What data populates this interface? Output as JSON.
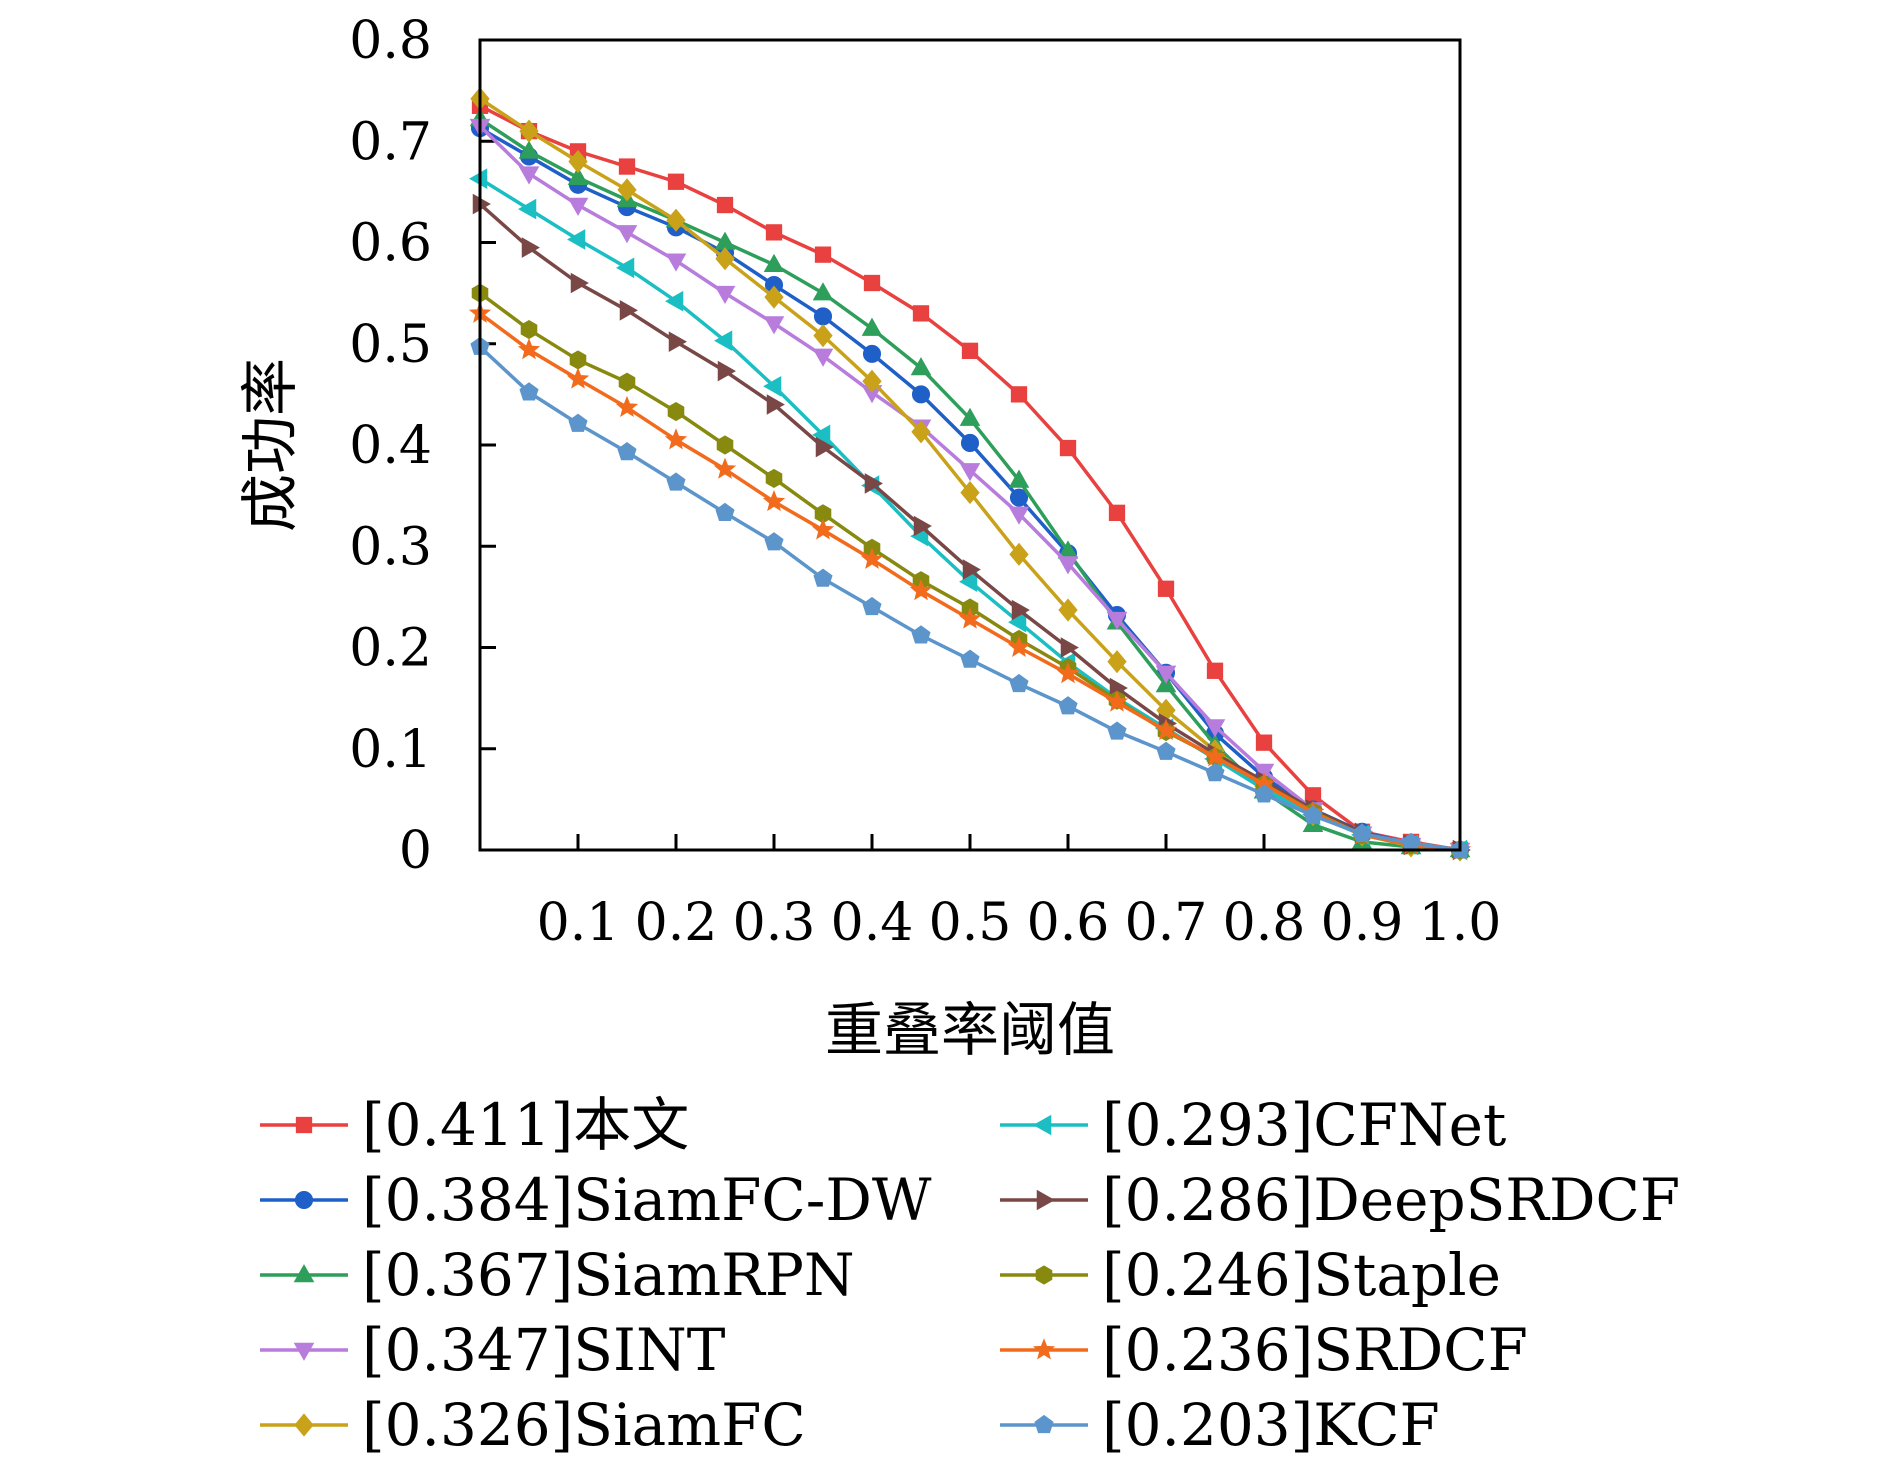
{
  "chart_data": {
    "type": "line",
    "title": "",
    "xlabel": "重叠率阈值",
    "ylabel": "成功率",
    "xlim": [
      0,
      1.0
    ],
    "ylim": [
      0,
      0.8
    ],
    "xticks": [
      "0.1",
      "0.2",
      "0.3",
      "0.4",
      "0.5",
      "0.6",
      "0.7",
      "0.8",
      "0.9",
      "1.0"
    ],
    "yticks": [
      "0",
      "0.1",
      "0.2",
      "0.3",
      "0.4",
      "0.5",
      "0.6",
      "0.7",
      "0.8"
    ],
    "grid": false,
    "legend_position": "bottom",
    "x": [
      0,
      0.05,
      0.1,
      0.15,
      0.2,
      0.25,
      0.3,
      0.35,
      0.4,
      0.45,
      0.5,
      0.55,
      0.6,
      0.65,
      0.7,
      0.75,
      0.8,
      0.85,
      0.9,
      0.95,
      1.0
    ],
    "series": [
      {
        "name": "[0.411]本文",
        "color": "#e8413f",
        "marker": "square",
        "values": [
          0.735,
          0.71,
          0.69,
          0.675,
          0.66,
          0.637,
          0.61,
          0.588,
          0.56,
          0.53,
          0.493,
          0.45,
          0.397,
          0.333,
          0.258,
          0.177,
          0.106,
          0.054,
          0.018,
          0.008,
          0.0
        ]
      },
      {
        "name": "[0.384]SiamFC-DW",
        "color": "#1f5fc8",
        "marker": "circle",
        "values": [
          0.713,
          0.685,
          0.657,
          0.635,
          0.615,
          0.59,
          0.558,
          0.527,
          0.49,
          0.45,
          0.402,
          0.348,
          0.293,
          0.232,
          0.175,
          0.115,
          0.072,
          0.04,
          0.018,
          0.006,
          0.0
        ]
      },
      {
        "name": "[0.367]SiamRPN",
        "color": "#2e9e5b",
        "marker": "triangle-up",
        "values": [
          0.722,
          0.69,
          0.664,
          0.642,
          0.622,
          0.6,
          0.578,
          0.55,
          0.515,
          0.476,
          0.426,
          0.365,
          0.295,
          0.225,
          0.163,
          0.104,
          0.058,
          0.025,
          0.008,
          0.003,
          0.0
        ]
      },
      {
        "name": "[0.347]SINT",
        "color": "#b77cdc",
        "marker": "triangle-down",
        "values": [
          0.715,
          0.668,
          0.637,
          0.61,
          0.582,
          0.55,
          0.52,
          0.488,
          0.452,
          0.418,
          0.375,
          0.332,
          0.283,
          0.228,
          0.175,
          0.122,
          0.078,
          0.04,
          0.016,
          0.005,
          0.0
        ]
      },
      {
        "name": "[0.326]SiamFC",
        "color": "#c9a21a",
        "marker": "diamond",
        "values": [
          0.742,
          0.71,
          0.68,
          0.652,
          0.622,
          0.584,
          0.546,
          0.508,
          0.463,
          0.413,
          0.353,
          0.292,
          0.237,
          0.186,
          0.138,
          0.098,
          0.063,
          0.035,
          0.015,
          0.004,
          0.0
        ]
      },
      {
        "name": "[0.293]CFNet",
        "color": "#1bbfc3",
        "marker": "triangle-left",
        "values": [
          0.663,
          0.633,
          0.603,
          0.575,
          0.542,
          0.503,
          0.458,
          0.41,
          0.36,
          0.31,
          0.265,
          0.225,
          0.185,
          0.15,
          0.12,
          0.09,
          0.06,
          0.035,
          0.015,
          0.005,
          0.0
        ]
      },
      {
        "name": "[0.286]DeepSRDCF",
        "color": "#7a4747",
        "marker": "triangle-right",
        "values": [
          0.638,
          0.595,
          0.56,
          0.533,
          0.502,
          0.473,
          0.44,
          0.398,
          0.362,
          0.32,
          0.277,
          0.237,
          0.2,
          0.16,
          0.125,
          0.095,
          0.068,
          0.04,
          0.017,
          0.005,
          0.0
        ]
      },
      {
        "name": "[0.246]Staple",
        "color": "#878a0f",
        "marker": "hexagon",
        "values": [
          0.55,
          0.514,
          0.484,
          0.462,
          0.433,
          0.4,
          0.367,
          0.332,
          0.298,
          0.266,
          0.239,
          0.208,
          0.18,
          0.148,
          0.117,
          0.092,
          0.065,
          0.038,
          0.015,
          0.005,
          0.0
        ]
      },
      {
        "name": "[0.236]SRDCF",
        "color": "#f26b1d",
        "marker": "star",
        "values": [
          0.53,
          0.494,
          0.465,
          0.437,
          0.405,
          0.376,
          0.344,
          0.316,
          0.287,
          0.256,
          0.228,
          0.2,
          0.174,
          0.146,
          0.118,
          0.092,
          0.065,
          0.037,
          0.015,
          0.005,
          0.0
        ]
      },
      {
        "name": "[0.203]KCF",
        "color": "#5b95cc",
        "marker": "pentagon",
        "values": [
          0.497,
          0.452,
          0.421,
          0.393,
          0.363,
          0.333,
          0.304,
          0.268,
          0.24,
          0.212,
          0.188,
          0.164,
          0.142,
          0.117,
          0.097,
          0.076,
          0.055,
          0.034,
          0.016,
          0.007,
          0.0
        ]
      }
    ]
  }
}
